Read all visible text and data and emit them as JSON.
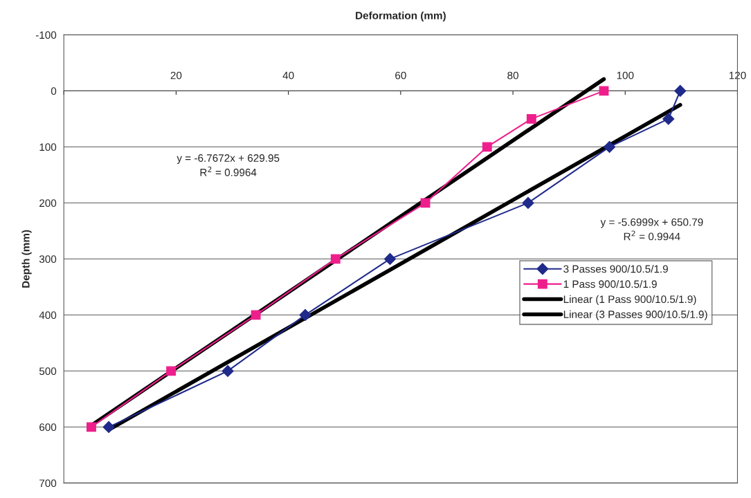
{
  "chart_data": {
    "type": "line",
    "xlabel": "Deformation (mm)",
    "ylabel": "Depth (mm)",
    "series": [
      {
        "name": "3 Passes 900/10.5/1.9",
        "color": "#1f2a8a",
        "marker": "diamond",
        "x": [
          8.0,
          29.2,
          43.0,
          58.1,
          82.7,
          97.2,
          107.7,
          109.8
        ],
        "values": [
          600,
          500,
          400,
          300,
          200,
          100,
          50,
          0
        ]
      },
      {
        "name": "1 Pass 900/10.5/1.9",
        "color": "#ee1f8c",
        "marker": "square",
        "x": [
          4.9,
          19.1,
          34.2,
          48.4,
          64.4,
          75.4,
          83.3,
          96.2
        ],
        "values": [
          600,
          500,
          400,
          300,
          200,
          100,
          50,
          0
        ]
      },
      {
        "name": "Linear (1 Pass 900/10.5/1.9)",
        "color": "#000000",
        "marker": "none",
        "x": [
          4.9,
          96.2
        ],
        "values": [
          597,
          -21
        ]
      },
      {
        "name": "Linear (3 Passes 900/10.5/1.9)",
        "color": "#000000",
        "marker": "none",
        "x": [
          8.0,
          109.8
        ],
        "values": [
          605,
          25
        ]
      }
    ],
    "xlim": [
      0,
      120
    ],
    "xticks": [
      {
        "value": 0,
        "label": null
      },
      20,
      40,
      60,
      80,
      100,
      120
    ],
    "ylim": [
      700,
      -100
    ],
    "yticks": [
      -100,
      0,
      100,
      200,
      300,
      400,
      500,
      600,
      700
    ],
    "grid": "y",
    "legend": "center right",
    "line_style": "solid",
    "annotations": [
      "y = -6.7672x + 629.95\nR$^{2}$ = 0.9964",
      "y = -5.6999x + 650.79\nR$^{2}$ = 0.9944"
    ]
  }
}
